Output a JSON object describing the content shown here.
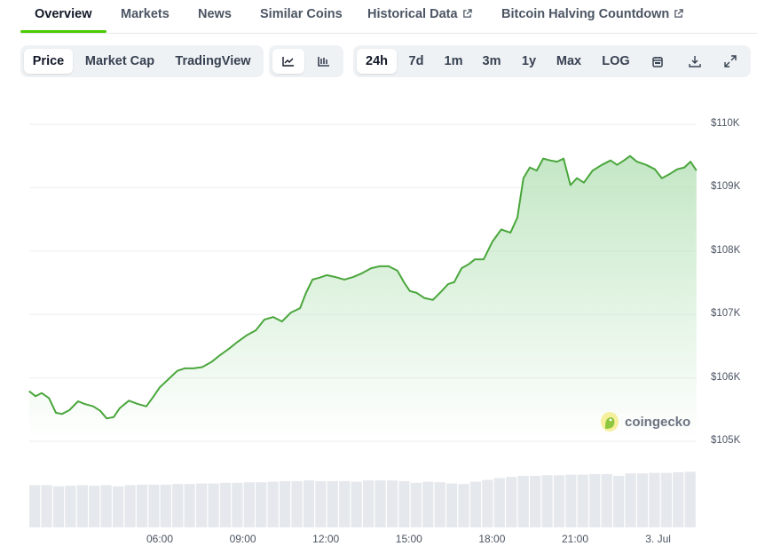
{
  "tabs": [
    {
      "label": "Overview",
      "active": true
    },
    {
      "label": "Markets"
    },
    {
      "label": "News"
    },
    {
      "label": "Similar Coins"
    },
    {
      "label": "Historical Data",
      "external": true
    },
    {
      "label": "Bitcoin Halving Countdown",
      "external": true
    }
  ],
  "toolbar": {
    "chart_type": [
      "Price",
      "Market Cap",
      "TradingView"
    ],
    "chart_type_selected": "Price",
    "view_icons": [
      "line-chart-icon",
      "candlestick-chart-icon"
    ],
    "view_selected": "line-chart-icon",
    "ranges": [
      "24h",
      "7d",
      "1m",
      "3m",
      "1y",
      "Max",
      "LOG"
    ],
    "range_selected": "24h",
    "action_icons": [
      "calendar-icon",
      "download-icon",
      "fullscreen-icon"
    ]
  },
  "watermark": "coingecko",
  "colors": {
    "accent": "#4bcc00",
    "line": "#4aa63c",
    "fill": "#b9e3bb",
    "volume": "#e5e8ec"
  },
  "chart_data": {
    "type": "area",
    "ylim": [
      105000,
      110000
    ],
    "yticks": [
      "$110K",
      "$109K",
      "$108K",
      "$107K",
      "$106K",
      "$105K"
    ],
    "ytick_values": [
      110000,
      109000,
      108000,
      107000,
      106000,
      105000
    ],
    "xticks": [
      "06:00",
      "09:00",
      "12:00",
      "15:00",
      "18:00",
      "21:00",
      "3. Jul"
    ],
    "xtick_times": [
      "2 Jul 06:00",
      "2 Jul 09:00",
      "2 Jul 12:00",
      "2 Jul 15:00",
      "2 Jul 18:00",
      "2 Jul 21:00",
      "3 Jul 00:00"
    ],
    "grid": true,
    "price": [
      [
        "2 Jul 01:17",
        105790
      ],
      [
        "2 Jul 01:31",
        105710
      ],
      [
        "2 Jul 01:44",
        105760
      ],
      [
        "2 Jul 02:00",
        105680
      ],
      [
        "2 Jul 02:15",
        105450
      ],
      [
        "2 Jul 02:28",
        105430
      ],
      [
        "2 Jul 02:44",
        105490
      ],
      [
        "2 Jul 03:03",
        105630
      ],
      [
        "2 Jul 03:17",
        105590
      ],
      [
        "2 Jul 03:36",
        105550
      ],
      [
        "2 Jul 03:51",
        105480
      ],
      [
        "2 Jul 04:05",
        105360
      ],
      [
        "2 Jul 04:20",
        105380
      ],
      [
        "2 Jul 04:33",
        105520
      ],
      [
        "2 Jul 04:53",
        105640
      ],
      [
        "2 Jul 05:12",
        105590
      ],
      [
        "2 Jul 05:31",
        105550
      ],
      [
        "2 Jul 05:45",
        105690
      ],
      [
        "2 Jul 06:00",
        105850
      ],
      [
        "2 Jul 06:19",
        105980
      ],
      [
        "2 Jul 06:38",
        106110
      ],
      [
        "2 Jul 06:54",
        106150
      ],
      [
        "2 Jul 07:13",
        106150
      ],
      [
        "2 Jul 07:32",
        106170
      ],
      [
        "2 Jul 07:52",
        106250
      ],
      [
        "2 Jul 08:11",
        106360
      ],
      [
        "2 Jul 08:30",
        106460
      ],
      [
        "2 Jul 08:49",
        106570
      ],
      [
        "2 Jul 09:08",
        106670
      ],
      [
        "2 Jul 09:28",
        106750
      ],
      [
        "2 Jul 09:47",
        106920
      ],
      [
        "2 Jul 10:06",
        106960
      ],
      [
        "2 Jul 10:25",
        106890
      ],
      [
        "2 Jul 10:44",
        107030
      ],
      [
        "2 Jul 11:04",
        107100
      ],
      [
        "2 Jul 11:17",
        107340
      ],
      [
        "2 Jul 11:31",
        107550
      ],
      [
        "2 Jul 11:46",
        107580
      ],
      [
        "2 Jul 12:02",
        107620
      ],
      [
        "2 Jul 12:21",
        107590
      ],
      [
        "2 Jul 12:40",
        107550
      ],
      [
        "2 Jul 12:59",
        107590
      ],
      [
        "2 Jul 13:18",
        107650
      ],
      [
        "2 Jul 13:38",
        107730
      ],
      [
        "2 Jul 13:57",
        107760
      ],
      [
        "2 Jul 14:16",
        107760
      ],
      [
        "2 Jul 14:35",
        107690
      ],
      [
        "2 Jul 14:49",
        107510
      ],
      [
        "2 Jul 15:02",
        107370
      ],
      [
        "2 Jul 15:17",
        107340
      ],
      [
        "2 Jul 15:33",
        107260
      ],
      [
        "2 Jul 15:52",
        107230
      ],
      [
        "2 Jul 16:11",
        107370
      ],
      [
        "2 Jul 16:25",
        107480
      ],
      [
        "2 Jul 16:38",
        107510
      ],
      [
        "2 Jul 16:54",
        107730
      ],
      [
        "2 Jul 17:09",
        107790
      ],
      [
        "2 Jul 17:23",
        107870
      ],
      [
        "2 Jul 17:42",
        107870
      ],
      [
        "2 Jul 18:01",
        108150
      ],
      [
        "2 Jul 18:20",
        108340
      ],
      [
        "2 Jul 18:40",
        108290
      ],
      [
        "2 Jul 18:55",
        108530
      ],
      [
        "2 Jul 19:08",
        109150
      ],
      [
        "2 Jul 19:22",
        109320
      ],
      [
        "2 Jul 19:37",
        109270
      ],
      [
        "2 Jul 19:51",
        109460
      ],
      [
        "2 Jul 20:06",
        109430
      ],
      [
        "2 Jul 20:21",
        109410
      ],
      [
        "2 Jul 20:35",
        109460
      ],
      [
        "2 Jul 20:50",
        109040
      ],
      [
        "2 Jul 21:04",
        109150
      ],
      [
        "2 Jul 21:19",
        109080
      ],
      [
        "2 Jul 21:38",
        109270
      ],
      [
        "2 Jul 21:58",
        109360
      ],
      [
        "2 Jul 22:17",
        109430
      ],
      [
        "2 Jul 22:31",
        109360
      ],
      [
        "2 Jul 22:46",
        109430
      ],
      [
        "2 Jul 22:59",
        109500
      ],
      [
        "2 Jul 23:14",
        109410
      ],
      [
        "2 Jul 23:34",
        109360
      ],
      [
        "2 Jul 23:53",
        109290
      ],
      [
        "3 Jul 00:08",
        109150
      ],
      [
        "3 Jul 00:26",
        109220
      ],
      [
        "3 Jul 00:41",
        109290
      ],
      [
        "3 Jul 00:57",
        109320
      ],
      [
        "3 Jul 01:10",
        109410
      ],
      [
        "3 Jul 01:23",
        109270
      ]
    ],
    "volume_relative": [
      0.72,
      0.72,
      0.7,
      0.71,
      0.72,
      0.71,
      0.72,
      0.7,
      0.72,
      0.73,
      0.73,
      0.73,
      0.74,
      0.74,
      0.75,
      0.75,
      0.76,
      0.76,
      0.77,
      0.77,
      0.78,
      0.79,
      0.79,
      0.8,
      0.79,
      0.79,
      0.79,
      0.78,
      0.8,
      0.8,
      0.8,
      0.79,
      0.76,
      0.78,
      0.77,
      0.75,
      0.74,
      0.78,
      0.81,
      0.84,
      0.86,
      0.88,
      0.88,
      0.89,
      0.89,
      0.9,
      0.9,
      0.91,
      0.91,
      0.88,
      0.92,
      0.92,
      0.93,
      0.93,
      0.94,
      0.95
    ]
  }
}
